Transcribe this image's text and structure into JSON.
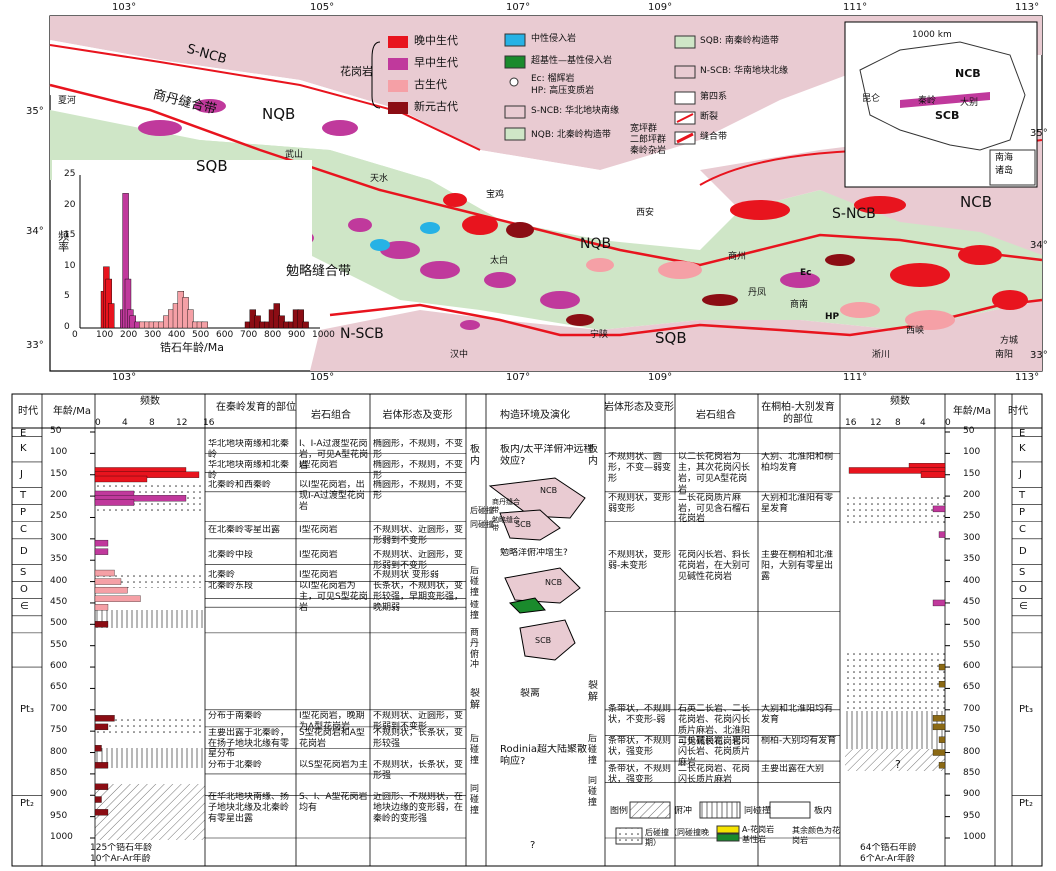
{
  "map": {
    "lon_ticks": [
      "103°",
      "105°",
      "107°",
      "109°",
      "111°",
      "113°"
    ],
    "lat_ticks": [
      "35°",
      "34°",
      "33°"
    ],
    "zones": {
      "sncb_top": "S-NCB",
      "nqb": "NQB",
      "sqb": "SQB",
      "nsc": "N-SCB",
      "sncb_right": "S-NCB",
      "ncb": "NCB",
      "nqb_mid": "NQB",
      "sqb_mid": "SQB"
    },
    "sutures": {
      "shangdan": "商丹缝合带",
      "mianlue": "勉略缝合带"
    },
    "places": [
      "夏河",
      "武山",
      "天水",
      "宝鸡",
      "西安",
      "太白",
      "商州",
      "丹凤",
      "商南",
      "汉中",
      "宁陕",
      "淅川",
      "西峡",
      "方城",
      "南阳"
    ],
    "small_labels": {
      "ec": "Ec",
      "hp": "HP"
    },
    "granite_label": "花岗岩",
    "legend_ages": [
      "晚中生代",
      "早中生代",
      "古生代",
      "新元古代"
    ],
    "legend_mid": [
      "中性侵入岩",
      "超基性—基性侵入岩",
      "Ec: 榴辉岩",
      "HP: 高压变质岩",
      "S-NCB: 华北地块南缘",
      "NQB: 北秦岭构造带"
    ],
    "legend_nqb_sub": [
      "宽坪群",
      "二郎坪群",
      "秦岭杂岩"
    ],
    "legend_right": [
      "SQB: 南秦岭构造带",
      "N-SCB: 华南地块北缘",
      "第四系",
      "断裂",
      "缝合带"
    ],
    "inset": {
      "scale": "1000 km",
      "ncb": "NCB",
      "scb": "SCB",
      "kunlun": "昆仑",
      "qinling": "秦岭",
      "dabie": "大别",
      "nanhai": "南海",
      "zhudao": "诸岛"
    },
    "hist": {
      "ylabel": "频率",
      "xlabel": "锆石年龄/Ma",
      "xticks": [
        "0",
        "100",
        "200",
        "300",
        "400",
        "500",
        "600",
        "700",
        "800",
        "900",
        "1000"
      ],
      "yticks": [
        "0",
        "5",
        "10",
        "15",
        "20",
        "25"
      ]
    }
  },
  "chart_data": {
    "type": "bar",
    "xlabel": "锆石年龄/Ma",
    "ylabel": "频率",
    "xlim": [
      0,
      1000
    ],
    "ylim": [
      0,
      25
    ],
    "x": [
      100,
      110,
      120,
      130,
      180,
      190,
      200,
      210,
      220,
      240,
      260,
      280,
      300,
      320,
      340,
      360,
      380,
      400,
      420,
      440,
      460,
      480,
      500,
      520,
      700,
      720,
      740,
      760,
      780,
      800,
      820,
      840,
      860,
      880,
      900,
      920,
      940
    ],
    "values": [
      6,
      10,
      8,
      4,
      3,
      22,
      8,
      3,
      2,
      1,
      1,
      1,
      1,
      1,
      1,
      2,
      3,
      4,
      6,
      5,
      3,
      1,
      1,
      1,
      1,
      3,
      2,
      1,
      1,
      3,
      4,
      2,
      1,
      1,
      3,
      3,
      1
    ]
  },
  "table": {
    "left_header": {
      "era": "时代",
      "age": "年龄/Ma",
      "freq": "频数",
      "qinling": "在秦岭发育的部位",
      "rock": "岩石组合",
      "form": "岩体形态及变形"
    },
    "center_header": "构造环境及演化",
    "right_header": {
      "form": "岩体形态及变形",
      "rock": "岩石组合",
      "dabie": "在桐柏-大别发育的部位",
      "freq": "频数",
      "age": "年龄/Ma",
      "era": "时代"
    },
    "eras": [
      "E",
      "K",
      "J",
      "T",
      "P",
      "C",
      "D",
      "S",
      "O",
      "∈",
      "Pt₃",
      "Pt₂"
    ],
    "ages": [
      "50",
      "100",
      "150",
      "200",
      "250",
      "300",
      "350",
      "400",
      "450",
      "500",
      "550",
      "600",
      "650",
      "700",
      "750",
      "800",
      "850",
      "900",
      "950",
      "1000"
    ],
    "freq_ticks_left": [
      "0",
      "4",
      "8",
      "12",
      "16"
    ],
    "freq_ticks_right": [
      "16",
      "12",
      "8",
      "4",
      "0"
    ],
    "left_rows": [
      {
        "pos": "华北地块南缘和北秦岭",
        "rock": "I、I-A过渡型花岗岩，可见A型花岗岩",
        "form": "椭圆形，不规则，不变形"
      },
      {
        "pos": "华北地块南缘和北秦岭",
        "rock": "I型花岗岩",
        "form": "椭圆形，不规则，不变形"
      },
      {
        "pos": "北秦岭和西秦岭",
        "rock": "以I型花岗岩，出现I-A过渡型花岗岩",
        "form": "椭圆形，不规则，不变形"
      },
      {
        "pos": "在北秦岭零星出露",
        "rock": "I型花岗岩",
        "form": "不规则状、近圆形，变形弱到不变形"
      },
      {
        "pos": "北秦岭中段",
        "rock": "I型花岗岩",
        "form": "不规则状、近圆形，变形弱到不变形"
      },
      {
        "pos": "北秦岭",
        "rock": "I型花岗岩",
        "form": "不规则状 变形弱"
      },
      {
        "pos": "北秦岭东段",
        "rock": "以I型花岗岩为主，可见S型花岗岩",
        "form": "长条状，不规则状，变形较强，早期变形强，晚期弱"
      },
      {
        "pos": "分布于南秦岭",
        "rock": "I型花岗岩，晚期为A型花岗岩",
        "form": "不规则状、近圆形，变形弱到不变形"
      },
      {
        "pos": "主要出露于北秦岭，在扬子地块北缘有零星分布",
        "rock": "S型花岗岩和A型花岗岩",
        "form": "不规则状，长条状，变形较强"
      },
      {
        "pos": "分布于北秦岭",
        "rock": "以S型花岗岩为主",
        "form": "不规则状，长条状，变形强"
      },
      {
        "pos": "在华北地块南缘、扬子地块北缘及北秦岭有零星出露",
        "rock": "S、I、A型花岗岩均有",
        "form": "近圆形、不规则状，在地块边缘的变形弱，在秦岭的变形强"
      }
    ],
    "center": {
      "plate_in": "板内",
      "pacific": "板内/太平洋俯冲远程效应?",
      "late": "后碰撞",
      "same": "同碰撞",
      "mianlue": "勉略洋俯冲增生?",
      "late2": "后碰撞",
      "coll": "碰撞",
      "shangdan": "商丹俯冲",
      "rift": "裂解",
      "rift_lbl": "裂离",
      "late3": "后碰撞",
      "same2": "同碰撞",
      "rodinia": "Rodinia超大陆聚散响应?",
      "q": "?",
      "ncb": "NCB",
      "scb": "SCB",
      "sd": "商丹缝合带",
      "ml": "勉略缝合带",
      "sncb": "SCB"
    },
    "right_rows": [
      {
        "form": "不规则状、圆形，不变—弱变形",
        "rock": "以二长花岗岩为主，其次花岗闪长岩，可见A型花岗岩",
        "dabie": "大别、北淮阳和桐柏均发育"
      },
      {
        "form": "不规则状，变形弱变形",
        "rock": "二长花岗质片麻岩，可见含石榴石花岗岩",
        "dabie": "大别和北淮阳有零星发育"
      },
      {
        "form": "不规则状，变形弱-未变形",
        "rock": "花岗闪长岩、斜长花岗岩，在大别可见碱性花岗岩",
        "dabie": "主要在桐柏和北淮阳，大别有零星出露"
      },
      {
        "form": "条带状，不规则状，不变形-弱",
        "rock": "石英二长岩、二长花岗岩、花岗闪长质片麻岩、北淮阳可见碱长花岗岩",
        "dabie": "大别和北淮阳均有发育"
      },
      {
        "form": "条带状，不规则状，强变形",
        "rock": "二长花岗岩、花岗闪长岩、花岗质片麻岩",
        "dabie": "桐柏-大别均有发育"
      },
      {
        "form": "条带状，不规则状，强变形",
        "rock": "二长花岗岩、花岗闪长质片麻岩",
        "dabie": "主要出露在大别"
      }
    ],
    "right_side": [
      "板内",
      "裂解",
      "后碰撞",
      "同碰撞"
    ],
    "legend": {
      "title": "图例",
      "fu": "俯冲",
      "tong": "同碰撞",
      "ban": "板内",
      "hou": "后碰撞（同碰撞晚期）",
      "a": "A-花岗岩",
      "ji": "基性岩",
      "other": "其余颜色为花岗岩"
    },
    "left_foot": [
      "125个锆石年龄",
      "10个Ar-Ar年龄"
    ],
    "right_foot": [
      "64个锆石年龄",
      "6个Ar-Ar年龄"
    ],
    "bottom_q": "?",
    "right_q": "?"
  },
  "colors": {
    "late_meso": "#e8141e",
    "early_meso": "#c0399c",
    "paleo": "#f5a0a6",
    "neo": "#8b0d14",
    "nqb": "#cfe6c7",
    "ncb": "#e9cbd2",
    "intermediate": "#27b2e5",
    "ultra": "#1a8a2c"
  }
}
